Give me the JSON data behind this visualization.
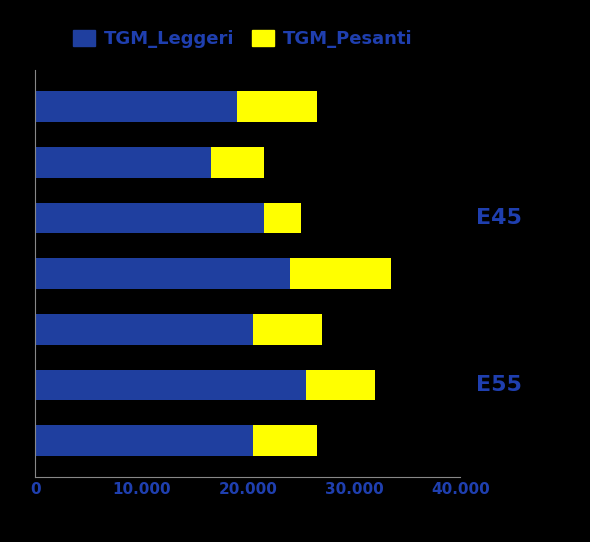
{
  "tgm_leggeri": [
    19000,
    16500,
    21500,
    24000,
    20500,
    25500,
    20500
  ],
  "tgm_pesanti": [
    7500,
    5000,
    3500,
    9500,
    6500,
    6500,
    6000
  ],
  "color_leggeri": "#1F3F9F",
  "color_pesanti": "#FFFF00",
  "legend_leggeri": "TGM_Leggeri",
  "legend_pesanti": "TGM_Pesanti",
  "xlim": [
    0,
    40000
  ],
  "xticks": [
    0,
    10000,
    20000,
    30000,
    40000
  ],
  "xtick_labels": [
    "0",
    "10.000",
    "20.000",
    "30.000",
    "40.000"
  ],
  "e45_bar_index": 2,
  "e55_bar_index": 5,
  "e45_label": "E45",
  "e55_label": "E55",
  "label_color": "#1F3FAF",
  "background_color": "#000000",
  "bar_height": 0.55,
  "tick_fontsize": 11,
  "annotation_fontsize": 16,
  "legend_fontsize": 13
}
